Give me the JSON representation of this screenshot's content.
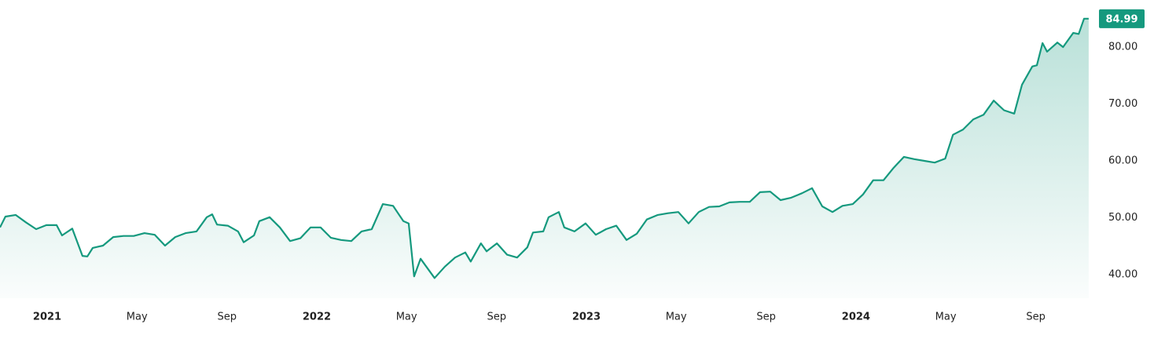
{
  "chart_data": {
    "type": "area",
    "color": "#15997e",
    "x": [
      2020.825,
      2020.845,
      2020.883,
      2020.921,
      2020.959,
      2020.997,
      2021.035,
      2021.055,
      2021.093,
      2021.131,
      2021.149,
      2021.169,
      2021.207,
      2021.245,
      2021.283,
      2021.321,
      2021.361,
      2021.399,
      2021.437,
      2021.475,
      2021.513,
      2021.554,
      2021.592,
      2021.612,
      2021.63,
      2021.67,
      2021.708,
      2021.729,
      2021.767,
      2021.787,
      2021.825,
      2021.863,
      2021.901,
      2021.939,
      2021.977,
      2022.014,
      2022.052,
      2022.09,
      2022.128,
      2022.166,
      2022.204,
      2022.245,
      2022.283,
      2022.321,
      2022.341,
      2022.361,
      2022.385,
      2022.437,
      2022.475,
      2022.513,
      2022.551,
      2022.571,
      2022.609,
      2022.63,
      2022.668,
      2022.706,
      2022.743,
      2022.781,
      2022.802,
      2022.84,
      2022.86,
      2022.898,
      2022.918,
      2022.956,
      2022.997,
      2023.035,
      2023.073,
      2023.111,
      2023.149,
      2023.187,
      2023.224,
      2023.265,
      2023.303,
      2023.341,
      2023.379,
      2023.417,
      2023.455,
      2023.493,
      2023.531,
      2023.569,
      2023.606,
      2023.644,
      2023.682,
      2023.72,
      2023.758,
      2023.799,
      2023.837,
      2023.875,
      2023.913,
      2023.95,
      2023.988,
      2024.026,
      2024.064,
      2024.102,
      2024.14,
      2024.178,
      2024.216,
      2024.254,
      2024.292,
      2024.331,
      2024.36,
      2024.397,
      2024.435,
      2024.473,
      2024.511,
      2024.549,
      2024.587,
      2024.616,
      2024.654,
      2024.671,
      2024.692,
      2024.709,
      2024.747,
      2024.768,
      2024.806,
      2024.826,
      2024.846,
      2024.863
    ],
    "values": [
      48.3,
      50.2,
      50.5,
      49.2,
      48.0,
      48.7,
      48.7,
      46.9,
      48.1,
      43.3,
      43.2,
      44.7,
      45.1,
      46.6,
      46.8,
      46.8,
      47.3,
      47.0,
      45.1,
      46.6,
      47.3,
      47.6,
      50.1,
      50.6,
      48.8,
      48.6,
      47.6,
      45.7,
      46.9,
      49.4,
      50.1,
      48.3,
      45.9,
      46.4,
      48.3,
      48.3,
      46.5,
      46.1,
      45.9,
      47.6,
      48.0,
      52.4,
      52.1,
      49.4,
      49.0,
      39.7,
      42.8,
      39.4,
      41.4,
      43.0,
      43.9,
      42.3,
      45.5,
      44.1,
      45.5,
      43.5,
      43.0,
      44.8,
      47.4,
      47.6,
      50.1,
      51.0,
      48.3,
      47.6,
      49.0,
      47.0,
      48.0,
      48.6,
      46.1,
      47.2,
      49.7,
      50.5,
      50.8,
      51.0,
      49.0,
      51.0,
      51.9,
      52.0,
      52.7,
      52.8,
      52.8,
      54.5,
      54.6,
      53.1,
      53.5,
      54.3,
      55.2,
      52.0,
      51.0,
      52.1,
      52.4,
      54.1,
      56.6,
      56.6,
      58.8,
      60.7,
      60.3,
      60.0,
      59.7,
      60.4,
      64.6,
      65.5,
      67.3,
      68.1,
      70.6,
      68.9,
      68.3,
      73.4,
      76.6,
      76.8,
      80.7,
      79.2,
      80.8,
      80.0,
      82.5,
      82.3,
      85.0,
      84.99
    ],
    "xlim": [
      2020.825,
      2024.878
    ],
    "ylim": [
      35.86,
      88.28
    ],
    "xticks": [
      {
        "value": 2021,
        "label": "2021"
      },
      {
        "value": 2021.333,
        "label": "May"
      },
      {
        "value": 2021.667,
        "label": "Sep"
      },
      {
        "value": 2022,
        "label": "2022"
      },
      {
        "value": 2022.333,
        "label": "May"
      },
      {
        "value": 2022.667,
        "label": "Sep"
      },
      {
        "value": 2023,
        "label": "2023"
      },
      {
        "value": 2023.333,
        "label": "May"
      },
      {
        "value": 2023.667,
        "label": "Sep"
      },
      {
        "value": 2024,
        "label": "2024"
      },
      {
        "value": 2024.333,
        "label": "May"
      },
      {
        "value": 2024.667,
        "label": "Sep"
      }
    ],
    "yticks": [
      {
        "value": 40,
        "label": "40.00"
      },
      {
        "value": 50,
        "label": "50.00"
      },
      {
        "value": 60,
        "label": "60.00"
      },
      {
        "value": 70,
        "label": "70.00"
      },
      {
        "value": 80,
        "label": "80.00"
      }
    ]
  }
}
